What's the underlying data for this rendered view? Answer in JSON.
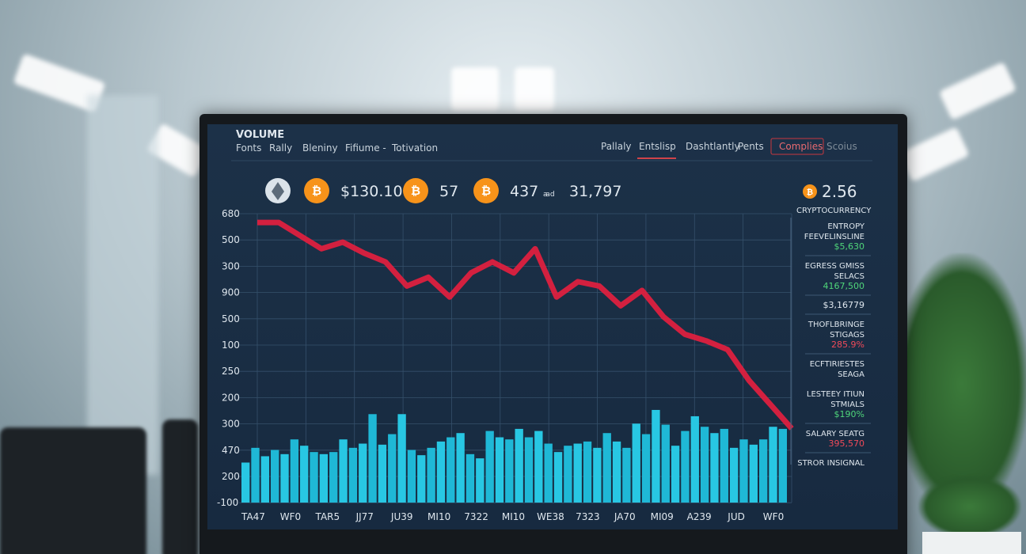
{
  "header": {
    "title": "VOLUME",
    "tabs_left": [
      "Fonts",
      "Rally",
      "Bleniny",
      "Fifiume -",
      "Totivation"
    ],
    "tabs_right": [
      "Pallaly",
      "Entslisp",
      "Dashtlantly",
      "Pents",
      "Complies",
      "Scoius"
    ]
  },
  "ticker": [
    "$130.10",
    "57",
    "437",
    "ꜳd",
    "31,797"
  ],
  "ticker_right": "2.56",
  "price_chart": {
    "values": [
      96,
      96,
      90,
      84,
      87,
      82,
      78,
      67,
      71,
      62,
      73,
      78,
      73,
      84,
      62,
      69,
      67,
      58,
      65,
      53,
      45,
      42,
      38,
      24,
      13,
      2
    ],
    "ylim": [
      0,
      100
    ]
  },
  "volume_chart": {
    "values": [
      38,
      52,
      44,
      50,
      46,
      60,
      54,
      48,
      46,
      48,
      60,
      52,
      56,
      84,
      55,
      65,
      84,
      50,
      45,
      52,
      58,
      62,
      66,
      46,
      42,
      68,
      62,
      60,
      70,
      62,
      68,
      56,
      48,
      54,
      56,
      58,
      52,
      66,
      58,
      52,
      75,
      65,
      88,
      74,
      54,
      68,
      82,
      72,
      66,
      70,
      52,
      60,
      55,
      60,
      72,
      70
    ],
    "ylim": [
      0,
      100
    ]
  },
  "y_axis_labels": [
    680,
    500,
    300,
    900,
    500,
    100,
    250,
    200,
    300,
    470,
    200,
    -100
  ],
  "x_axis_labels": [
    "TA47",
    "WF0",
    "TAR5",
    "JJ77",
    "JU39",
    "MI10",
    "7322",
    "MI10",
    "WE38",
    "7323",
    "JA70",
    "MI09",
    "A239",
    "JUD",
    "WF0"
  ],
  "sidebar": {
    "title": "CRYPTOCURRENCY",
    "items": [
      {
        "lines": [
          "ENTROPY",
          "FEEVELINSLINE"
        ],
        "value": "$5,630"
      },
      {
        "lines": [
          "EGRESS GMISS",
          "SELACS"
        ],
        "value": "4167,500"
      },
      {
        "lines": [],
        "value": "$3,16779"
      },
      {
        "lines": [
          "THOFLBRINGE",
          "STIGAGS"
        ],
        "value": "285.9%"
      },
      {
        "lines": [
          "ECFTIRIESTES",
          "SEAGA"
        ],
        "value": null
      },
      {
        "lines": [
          "LESTEEY ITIUN",
          "STMIALS"
        ],
        "value": "$190%"
      },
      {
        "lines": [
          "SALARY SEATG"
        ],
        "value": "395,570"
      },
      {
        "lines": [
          "STROR INSIGNAL"
        ],
        "value": null
      }
    ]
  }
}
